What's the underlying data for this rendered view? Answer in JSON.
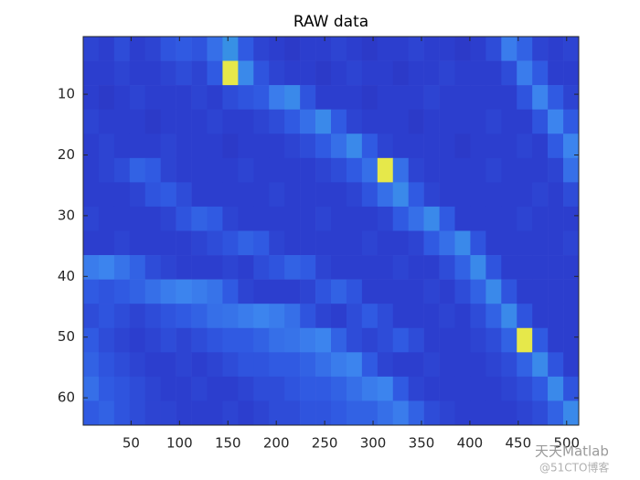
{
  "chart_data": {
    "type": "heatmap",
    "title": "RAW data",
    "xlim": [
      0.5,
      512.5
    ],
    "ylim": [
      0.5,
      64.5
    ],
    "y_reversed": true,
    "xticks": [
      50,
      100,
      150,
      200,
      250,
      300,
      350,
      400,
      450,
      500
    ],
    "yticks": [
      10,
      20,
      30,
      40,
      50,
      60
    ],
    "colormap": "parula",
    "z": [
      [
        0.22,
        0.2,
        0.25,
        0.2,
        0.22,
        0.28,
        0.3,
        0.28,
        0.35,
        0.45,
        0.3,
        0.22,
        0.2,
        0.18,
        0.2,
        0.2,
        0.22,
        0.2,
        0.18,
        0.2,
        0.2,
        0.22,
        0.2,
        0.2,
        0.18,
        0.2,
        0.25,
        0.38,
        0.32,
        0.22,
        0.2,
        0.22
      ],
      [
        0.2,
        0.2,
        0.22,
        0.2,
        0.2,
        0.22,
        0.25,
        0.22,
        0.3,
        0.9,
        0.42,
        0.28,
        0.22,
        0.2,
        0.2,
        0.18,
        0.2,
        0.22,
        0.2,
        0.2,
        0.18,
        0.2,
        0.2,
        0.22,
        0.2,
        0.2,
        0.2,
        0.25,
        0.38,
        0.3,
        0.2,
        0.2
      ],
      [
        0.2,
        0.18,
        0.2,
        0.22,
        0.2,
        0.2,
        0.2,
        0.22,
        0.2,
        0.25,
        0.28,
        0.3,
        0.38,
        0.42,
        0.28,
        0.2,
        0.2,
        0.2,
        0.18,
        0.2,
        0.2,
        0.2,
        0.22,
        0.2,
        0.2,
        0.2,
        0.2,
        0.2,
        0.28,
        0.4,
        0.3,
        0.22
      ],
      [
        0.22,
        0.2,
        0.2,
        0.2,
        0.18,
        0.2,
        0.2,
        0.2,
        0.22,
        0.2,
        0.2,
        0.22,
        0.25,
        0.3,
        0.35,
        0.42,
        0.3,
        0.22,
        0.2,
        0.2,
        0.2,
        0.18,
        0.2,
        0.2,
        0.2,
        0.2,
        0.22,
        0.2,
        0.2,
        0.28,
        0.4,
        0.3
      ],
      [
        0.2,
        0.22,
        0.2,
        0.2,
        0.2,
        0.22,
        0.2,
        0.2,
        0.2,
        0.18,
        0.2,
        0.2,
        0.2,
        0.22,
        0.25,
        0.3,
        0.35,
        0.42,
        0.3,
        0.22,
        0.2,
        0.2,
        0.2,
        0.2,
        0.18,
        0.2,
        0.2,
        0.2,
        0.22,
        0.2,
        0.3,
        0.4
      ],
      [
        0.2,
        0.22,
        0.25,
        0.32,
        0.3,
        0.22,
        0.2,
        0.2,
        0.2,
        0.2,
        0.22,
        0.2,
        0.2,
        0.2,
        0.2,
        0.22,
        0.25,
        0.3,
        0.35,
        0.9,
        0.35,
        0.22,
        0.2,
        0.2,
        0.2,
        0.2,
        0.22,
        0.2,
        0.2,
        0.2,
        0.22,
        0.35
      ],
      [
        0.2,
        0.2,
        0.2,
        0.22,
        0.28,
        0.3,
        0.25,
        0.2,
        0.2,
        0.2,
        0.2,
        0.2,
        0.22,
        0.2,
        0.2,
        0.2,
        0.2,
        0.22,
        0.28,
        0.35,
        0.42,
        0.3,
        0.22,
        0.2,
        0.2,
        0.2,
        0.2,
        0.2,
        0.2,
        0.22,
        0.2,
        0.25
      ],
      [
        0.22,
        0.2,
        0.2,
        0.2,
        0.2,
        0.22,
        0.28,
        0.32,
        0.3,
        0.22,
        0.2,
        0.2,
        0.2,
        0.2,
        0.2,
        0.22,
        0.2,
        0.2,
        0.2,
        0.22,
        0.3,
        0.35,
        0.42,
        0.3,
        0.2,
        0.2,
        0.2,
        0.2,
        0.22,
        0.2,
        0.2,
        0.2
      ],
      [
        0.2,
        0.2,
        0.22,
        0.2,
        0.2,
        0.2,
        0.2,
        0.22,
        0.25,
        0.28,
        0.32,
        0.3,
        0.22,
        0.2,
        0.2,
        0.2,
        0.2,
        0.2,
        0.22,
        0.2,
        0.2,
        0.22,
        0.3,
        0.35,
        0.42,
        0.28,
        0.2,
        0.2,
        0.2,
        0.2,
        0.2,
        0.22
      ],
      [
        0.38,
        0.4,
        0.36,
        0.32,
        0.25,
        0.22,
        0.2,
        0.2,
        0.2,
        0.22,
        0.2,
        0.25,
        0.28,
        0.32,
        0.3,
        0.22,
        0.2,
        0.2,
        0.2,
        0.2,
        0.22,
        0.2,
        0.2,
        0.25,
        0.32,
        0.42,
        0.28,
        0.2,
        0.2,
        0.2,
        0.2,
        0.2
      ],
      [
        0.3,
        0.28,
        0.3,
        0.32,
        0.35,
        0.38,
        0.4,
        0.38,
        0.36,
        0.3,
        0.22,
        0.2,
        0.2,
        0.2,
        0.22,
        0.28,
        0.32,
        0.28,
        0.2,
        0.2,
        0.2,
        0.2,
        0.22,
        0.2,
        0.25,
        0.32,
        0.42,
        0.28,
        0.2,
        0.2,
        0.2,
        0.2
      ],
      [
        0.25,
        0.28,
        0.25,
        0.22,
        0.25,
        0.28,
        0.3,
        0.32,
        0.35,
        0.36,
        0.38,
        0.4,
        0.38,
        0.35,
        0.28,
        0.22,
        0.2,
        0.25,
        0.3,
        0.25,
        0.2,
        0.2,
        0.2,
        0.22,
        0.2,
        0.25,
        0.32,
        0.42,
        0.28,
        0.2,
        0.2,
        0.2
      ],
      [
        0.3,
        0.25,
        0.22,
        0.2,
        0.22,
        0.25,
        0.22,
        0.25,
        0.28,
        0.3,
        0.3,
        0.32,
        0.35,
        0.36,
        0.38,
        0.4,
        0.32,
        0.25,
        0.22,
        0.25,
        0.3,
        0.25,
        0.2,
        0.2,
        0.2,
        0.22,
        0.25,
        0.32,
        0.9,
        0.3,
        0.2,
        0.2
      ],
      [
        0.32,
        0.28,
        0.25,
        0.22,
        0.2,
        0.2,
        0.22,
        0.2,
        0.22,
        0.25,
        0.28,
        0.28,
        0.3,
        0.3,
        0.32,
        0.35,
        0.38,
        0.4,
        0.3,
        0.22,
        0.2,
        0.2,
        0.22,
        0.2,
        0.2,
        0.2,
        0.22,
        0.25,
        0.32,
        0.42,
        0.28,
        0.2
      ],
      [
        0.35,
        0.3,
        0.28,
        0.25,
        0.22,
        0.2,
        0.2,
        0.22,
        0.2,
        0.2,
        0.22,
        0.25,
        0.25,
        0.28,
        0.3,
        0.3,
        0.32,
        0.35,
        0.38,
        0.4,
        0.3,
        0.22,
        0.2,
        0.2,
        0.2,
        0.2,
        0.2,
        0.22,
        0.25,
        0.3,
        0.42,
        0.28
      ],
      [
        0.3,
        0.32,
        0.28,
        0.25,
        0.22,
        0.22,
        0.2,
        0.2,
        0.2,
        0.22,
        0.2,
        0.22,
        0.25,
        0.25,
        0.28,
        0.28,
        0.3,
        0.32,
        0.32,
        0.35,
        0.38,
        0.32,
        0.25,
        0.22,
        0.2,
        0.2,
        0.2,
        0.2,
        0.22,
        0.25,
        0.32,
        0.42
      ]
    ]
  },
  "watermark": {
    "name": "天天Matlab",
    "source": "@51CTO博客"
  }
}
